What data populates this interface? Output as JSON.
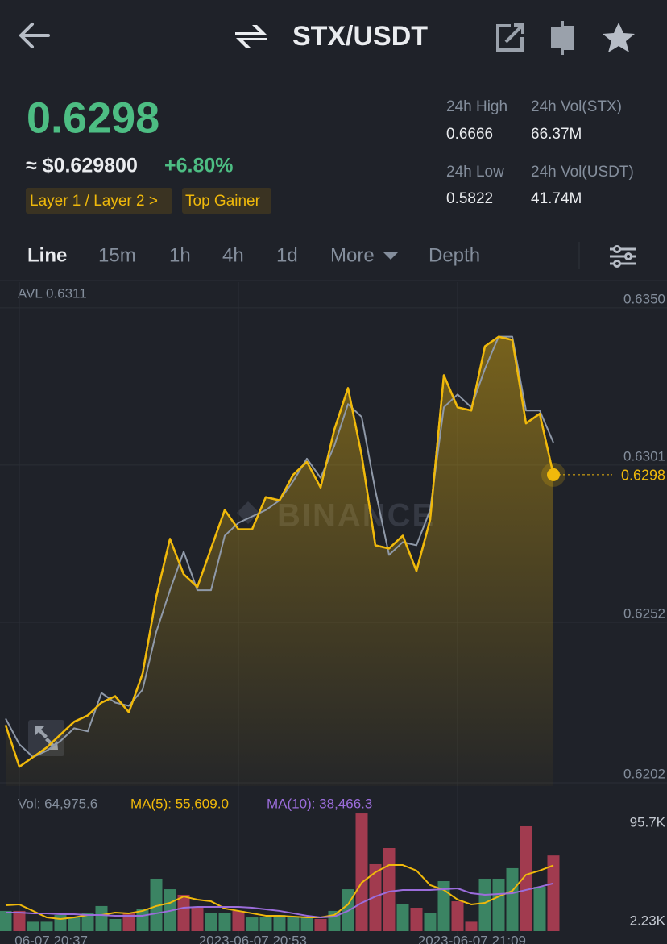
{
  "header": {
    "pair": "STX/USDT"
  },
  "ticker": {
    "price": "0.6298",
    "usd": "≈ $0.629800",
    "change": "+6.80%",
    "tags": [
      "Layer 1 / Layer 2 >",
      "Top Gainer"
    ],
    "stats": [
      {
        "label": "24h High",
        "value": "0.6666"
      },
      {
        "label": "24h Vol(STX)",
        "value": "66.37M"
      },
      {
        "label": "24h Low",
        "value": "0.5822"
      },
      {
        "label": "24h Vol(USDT)",
        "value": "41.74M"
      }
    ]
  },
  "tabs": [
    "Line",
    "15m",
    "1h",
    "4h",
    "1d",
    "More",
    "Depth"
  ],
  "chart_data": [
    {
      "type": "line",
      "annotation": "AVL 0.6311",
      "watermark": "BINANCE",
      "last_price": 0.6298,
      "series": [
        {
          "color": "#f0b90b",
          "values": [
            0.622,
            0.6207,
            0.621,
            0.6213,
            0.6217,
            0.6221,
            0.6223,
            0.6227,
            0.6229,
            0.6224,
            0.6236,
            0.626,
            0.6278,
            0.6267,
            0.6263,
            0.6275,
            0.6287,
            0.6281,
            0.6281,
            0.6291,
            0.629,
            0.6298,
            0.6302,
            0.6294,
            0.6312,
            0.6325,
            0.6304,
            0.6276,
            0.6275,
            0.6279,
            0.6268,
            0.6284,
            0.6329,
            0.6319,
            0.6318,
            0.6338,
            0.6341,
            0.634,
            0.6314,
            0.6317,
            0.6298
          ]
        },
        {
          "color": "#8f99a8",
          "values": [
            0.6222,
            0.6214,
            0.621,
            0.6212,
            0.6215,
            0.6219,
            0.6218,
            0.623,
            0.6227,
            0.6226,
            0.6231,
            0.6249,
            0.6262,
            0.6274,
            0.6262,
            0.6262,
            0.6279,
            0.6283,
            0.6285,
            0.6287,
            0.629,
            0.6296,
            0.6303,
            0.6297,
            0.6307,
            0.632,
            0.6316,
            0.6293,
            0.6273,
            0.6277,
            0.6276,
            0.6287,
            0.6319,
            0.6323,
            0.6319,
            0.6331,
            0.6341,
            0.6341,
            0.6318,
            0.6318,
            0.6308
          ]
        }
      ],
      "ylim": [
        0.6201,
        0.6358
      ],
      "yticks": [
        {
          "value": 0.635,
          "label": "0.6350"
        },
        0.6301,
        0.6252,
        0.6202
      ],
      "grid": true
    },
    {
      "type": "bar",
      "legend": [
        "Vol: 64,975.6",
        "MA(5): 55,609.0",
        "MA(10): 38,466.3"
      ],
      "categories": [
        null,
        "06-07 20:37",
        null,
        null,
        null,
        null,
        null,
        null,
        null,
        null,
        null,
        null,
        null,
        null,
        null,
        null,
        null,
        "2023-06-07 20:53",
        null,
        null,
        null,
        null,
        null,
        null,
        null,
        null,
        null,
        null,
        null,
        null,
        null,
        null,
        null,
        "2023-06-07 21:09",
        null,
        null,
        null,
        null,
        null,
        null,
        null
      ],
      "values": [
        12300,
        12300,
        2000,
        2000,
        8400,
        6100,
        10700,
        16900,
        4600,
        10000,
        13800,
        42900,
        32900,
        27600,
        16100,
        10700,
        10700,
        12300,
        6100,
        6100,
        8400,
        6100,
        6100,
        4600,
        12300,
        32900,
        104900,
        56700,
        72000,
        18400,
        15300,
        10000,
        40600,
        21400,
        2000,
        42900,
        42900,
        52900,
        92700,
        35200,
        64975.6
      ],
      "colors": [
        "#3b8463",
        "#a13b4f",
        "#3b8463",
        "#3b8463",
        "#3b8463",
        "#3b8463",
        "#3b8463",
        "#3b8463",
        "#3b8463",
        "#a13b4f",
        "#3b8463",
        "#3b8463",
        "#3b8463",
        "#a13b4f",
        "#a13b4f",
        "#3b8463",
        "#3b8463",
        "#a13b4f",
        "#3b8463",
        "#3b8463",
        "#3b8463",
        "#3b8463",
        "#3b8463",
        "#a13b4f",
        "#3b8463",
        "#3b8463",
        "#a13b4f",
        "#a13b4f",
        "#a13b4f",
        "#3b8463",
        "#a13b4f",
        "#3b8463",
        "#3b8463",
        "#a13b4f",
        "#a13b4f",
        "#3b8463",
        "#3b8463",
        "#3b8463",
        "#a13b4f",
        "#3b8463",
        "#a13b4f"
      ],
      "series": [
        {
          "color": "#f0b90b",
          "values": [
            17600,
            18400,
            12300,
            6100,
            4600,
            6100,
            8400,
            8400,
            10700,
            10000,
            12300,
            16900,
            19900,
            26000,
            23000,
            21400,
            14600,
            12300,
            10000,
            7700,
            7700,
            6900,
            6100,
            6100,
            8400,
            18400,
            39100,
            49000,
            55900,
            55900,
            50600,
            36800,
            32200,
            23000,
            18400,
            19900,
            26000,
            31400,
            46700,
            50600,
            55609
          ]
        },
        {
          "color": "#9b6ddb",
          "values": [
            10700,
            10700,
            10000,
            10000,
            9200,
            9200,
            8400,
            8400,
            7700,
            7700,
            7700,
            10000,
            12300,
            15300,
            16100,
            16100,
            16100,
            16100,
            15300,
            13800,
            12300,
            10000,
            7700,
            6100,
            6900,
            12300,
            19900,
            26000,
            30600,
            32200,
            32200,
            32200,
            32900,
            33700,
            29100,
            27600,
            28300,
            29100,
            32200,
            35200,
            38466.3
          ]
        }
      ],
      "ylim": [
        0,
        105700
      ],
      "yticks": [
        {
          "value": 95700,
          "label": "95.7K"
        },
        {
          "value": 2230,
          "label": "2.23K"
        }
      ]
    }
  ]
}
